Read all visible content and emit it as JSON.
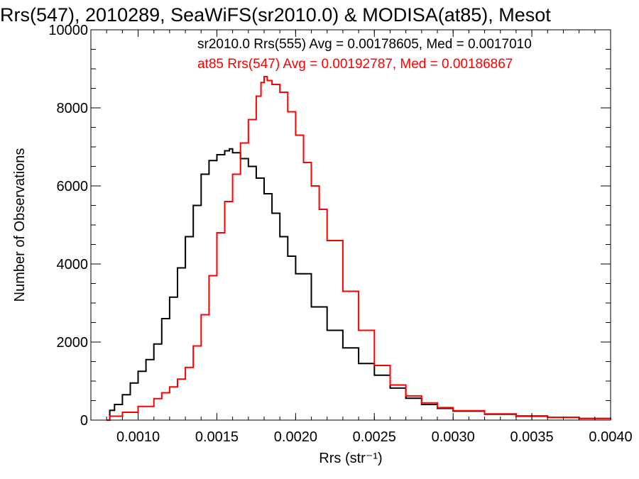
{
  "chart_data": {
    "type": "line",
    "title": "Rrs(547), 2010289, SeaWiFS(sr2010.0) & MODISA(at85), Mesot",
    "xlabel": "Rrs (str⁻¹)",
    "ylabel": "Number of Observations",
    "xlim": [
      0.0007,
      0.004
    ],
    "ylim": [
      0,
      10000
    ],
    "x_ticks": [
      0.001,
      0.0015,
      0.002,
      0.0025,
      0.003,
      0.0035,
      0.004
    ],
    "x_tick_labels": [
      "0.0010",
      "0.0015",
      "0.0020",
      "0.0025",
      "0.0030",
      "0.0035",
      "0.0040"
    ],
    "y_ticks": [
      0,
      2000,
      4000,
      6000,
      8000,
      10000
    ],
    "y_tick_labels": [
      "0",
      "2000",
      "4000",
      "6000",
      "8000",
      "10000"
    ],
    "grid": false,
    "legend_position": "top-right",
    "annotations": [
      "sr2010.0 Rrs(555) Avg = 0.00178605, Med = 0.0017010",
      "at85 Rrs(547) Avg = 0.00192787, Med = 0.00186867"
    ],
    "series": [
      {
        "color": "#000000",
        "step": true,
        "x": [
          0.0008,
          0.00082,
          0.00085,
          0.0009,
          0.00095,
          0.001,
          0.00105,
          0.0011,
          0.00115,
          0.0012,
          0.00125,
          0.0013,
          0.00135,
          0.0014,
          0.00145,
          0.0015,
          0.00155,
          0.00158,
          0.0016,
          0.00165,
          0.0017,
          0.00175,
          0.0018,
          0.00185,
          0.0019,
          0.00195,
          0.002,
          0.0021,
          0.0022,
          0.0023,
          0.0024,
          0.0025,
          0.0026,
          0.0027,
          0.0028,
          0.0029,
          0.003,
          0.0032,
          0.0034,
          0.0036,
          0.0038,
          0.004
        ],
        "values": [
          0,
          250,
          400,
          650,
          950,
          1250,
          1550,
          1950,
          2600,
          3150,
          3900,
          4700,
          5500,
          6300,
          6650,
          6800,
          6900,
          6950,
          6850,
          6700,
          6500,
          6200,
          5800,
          5300,
          4700,
          4200,
          3750,
          2900,
          2300,
          1850,
          1450,
          1150,
          820,
          560,
          400,
          300,
          230,
          150,
          100,
          70,
          40,
          20
        ]
      },
      {
        "color": "#ff0000",
        "step": true,
        "x": [
          0.0008,
          0.00082,
          0.0009,
          0.001,
          0.0011,
          0.00115,
          0.0012,
          0.00125,
          0.0013,
          0.00135,
          0.0014,
          0.00145,
          0.0015,
          0.00155,
          0.0016,
          0.00165,
          0.0017,
          0.00175,
          0.00178,
          0.0018,
          0.00182,
          0.00185,
          0.0019,
          0.00195,
          0.002,
          0.00205,
          0.0021,
          0.00215,
          0.0022,
          0.0023,
          0.0024,
          0.0025,
          0.0026,
          0.0027,
          0.0028,
          0.0029,
          0.003,
          0.0032,
          0.0034,
          0.0036,
          0.0038,
          0.004
        ],
        "values": [
          0,
          100,
          200,
          350,
          550,
          700,
          850,
          1050,
          1350,
          1900,
          2700,
          3700,
          4800,
          5600,
          6300,
          7100,
          7700,
          8300,
          8650,
          8800,
          8700,
          8600,
          8400,
          7900,
          7300,
          6600,
          6000,
          5400,
          4600,
          3300,
          2300,
          1400,
          900,
          620,
          440,
          320,
          240,
          160,
          110,
          70,
          40,
          20
        ]
      }
    ]
  }
}
